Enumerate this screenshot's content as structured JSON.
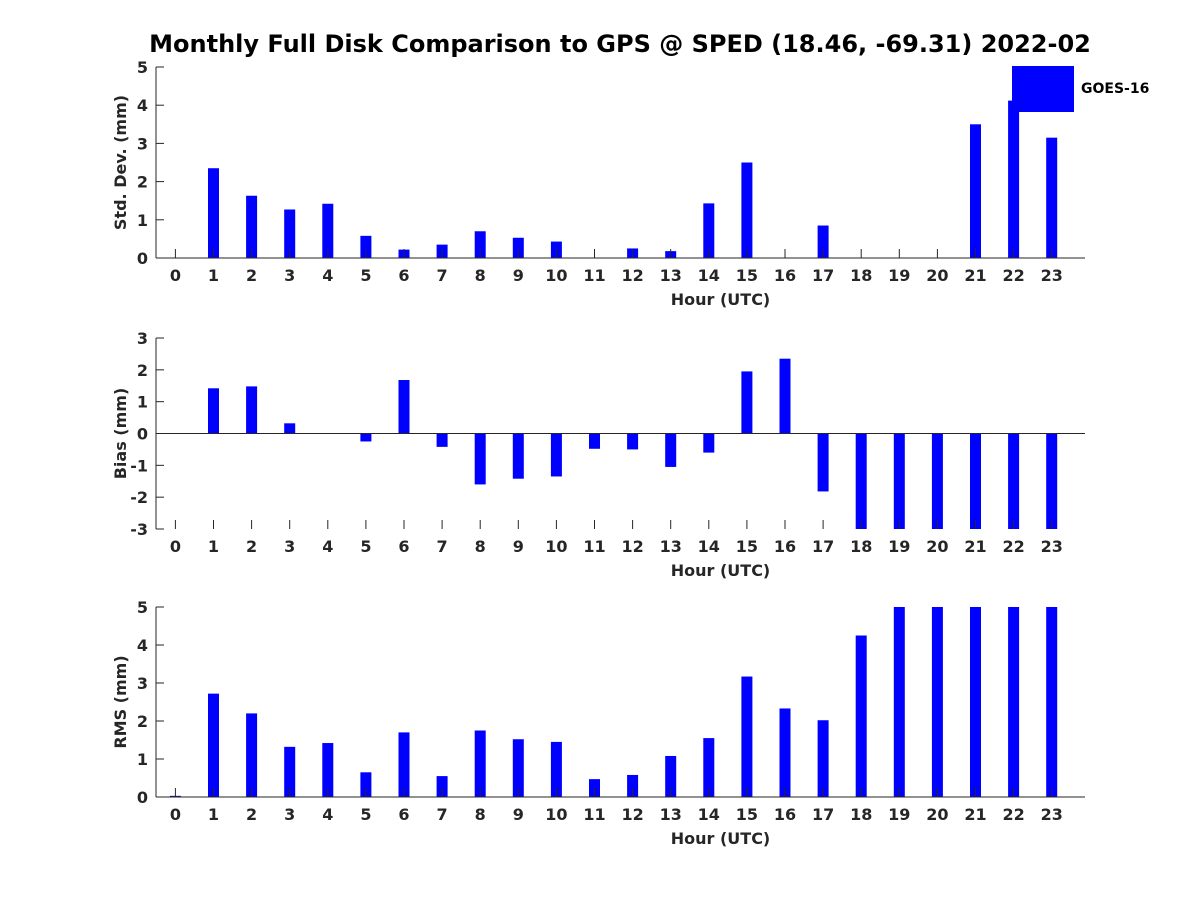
{
  "title": "Monthly Full Disk Comparison to GPS @ SPED (18.46, -69.31) 2022-02",
  "legend": {
    "label": "GOES-16",
    "color": "#0000ff"
  },
  "chart_data": [
    {
      "type": "bar",
      "name": "std-dev",
      "xlabel": "Hour (UTC)",
      "ylabel": "Std. Dev. (mm)",
      "ylim": [
        0,
        5
      ],
      "yticks": [
        0,
        1,
        2,
        3,
        4,
        5
      ],
      "categories": [
        "0",
        "1",
        "2",
        "3",
        "4",
        "5",
        "6",
        "7",
        "8",
        "9",
        "10",
        "11",
        "12",
        "13",
        "14",
        "15",
        "16",
        "17",
        "18",
        "19",
        "20",
        "21",
        "22",
        "23"
      ],
      "values": [
        0,
        2.35,
        1.63,
        1.27,
        1.42,
        0.58,
        0.22,
        0.35,
        0.7,
        0.53,
        0.43,
        0,
        0.25,
        0.18,
        1.43,
        2.5,
        0,
        0.85,
        0,
        0,
        0,
        3.5,
        4.12,
        3.15
      ],
      "color": "#0000ff"
    },
    {
      "type": "bar",
      "name": "bias",
      "xlabel": "Hour (UTC)",
      "ylabel": "Bias (mm)",
      "ylim": [
        -3,
        3
      ],
      "yticks": [
        -3,
        -2,
        -1,
        0,
        1,
        2,
        3
      ],
      "categories": [
        "0",
        "1",
        "2",
        "3",
        "4",
        "5",
        "6",
        "7",
        "8",
        "9",
        "10",
        "11",
        "12",
        "13",
        "14",
        "15",
        "16",
        "17",
        "18",
        "19",
        "20",
        "21",
        "22",
        "23"
      ],
      "values": [
        0,
        1.42,
        1.48,
        0.32,
        0,
        -0.25,
        1.68,
        -0.42,
        -1.6,
        -1.42,
        -1.35,
        -0.48,
        -0.5,
        -1.05,
        -0.6,
        1.95,
        2.35,
        -1.82,
        -3,
        -3,
        -3,
        -3,
        -3,
        -3
      ],
      "color": "#0000ff"
    },
    {
      "type": "bar",
      "name": "rms",
      "xlabel": "Hour (UTC)",
      "ylabel": "RMS (mm)",
      "ylim": [
        0,
        5
      ],
      "yticks": [
        0,
        1,
        2,
        3,
        4,
        5
      ],
      "categories": [
        "0",
        "1",
        "2",
        "3",
        "4",
        "5",
        "6",
        "7",
        "8",
        "9",
        "10",
        "11",
        "12",
        "13",
        "14",
        "15",
        "16",
        "17",
        "18",
        "19",
        "20",
        "21",
        "22",
        "23"
      ],
      "values": [
        0.03,
        2.72,
        2.2,
        1.32,
        1.42,
        0.65,
        1.7,
        0.55,
        1.75,
        1.52,
        1.45,
        0.47,
        0.58,
        1.08,
        1.55,
        3.17,
        2.33,
        2.02,
        4.25,
        5,
        5,
        5,
        5,
        5
      ],
      "color": "#0000ff"
    }
  ]
}
